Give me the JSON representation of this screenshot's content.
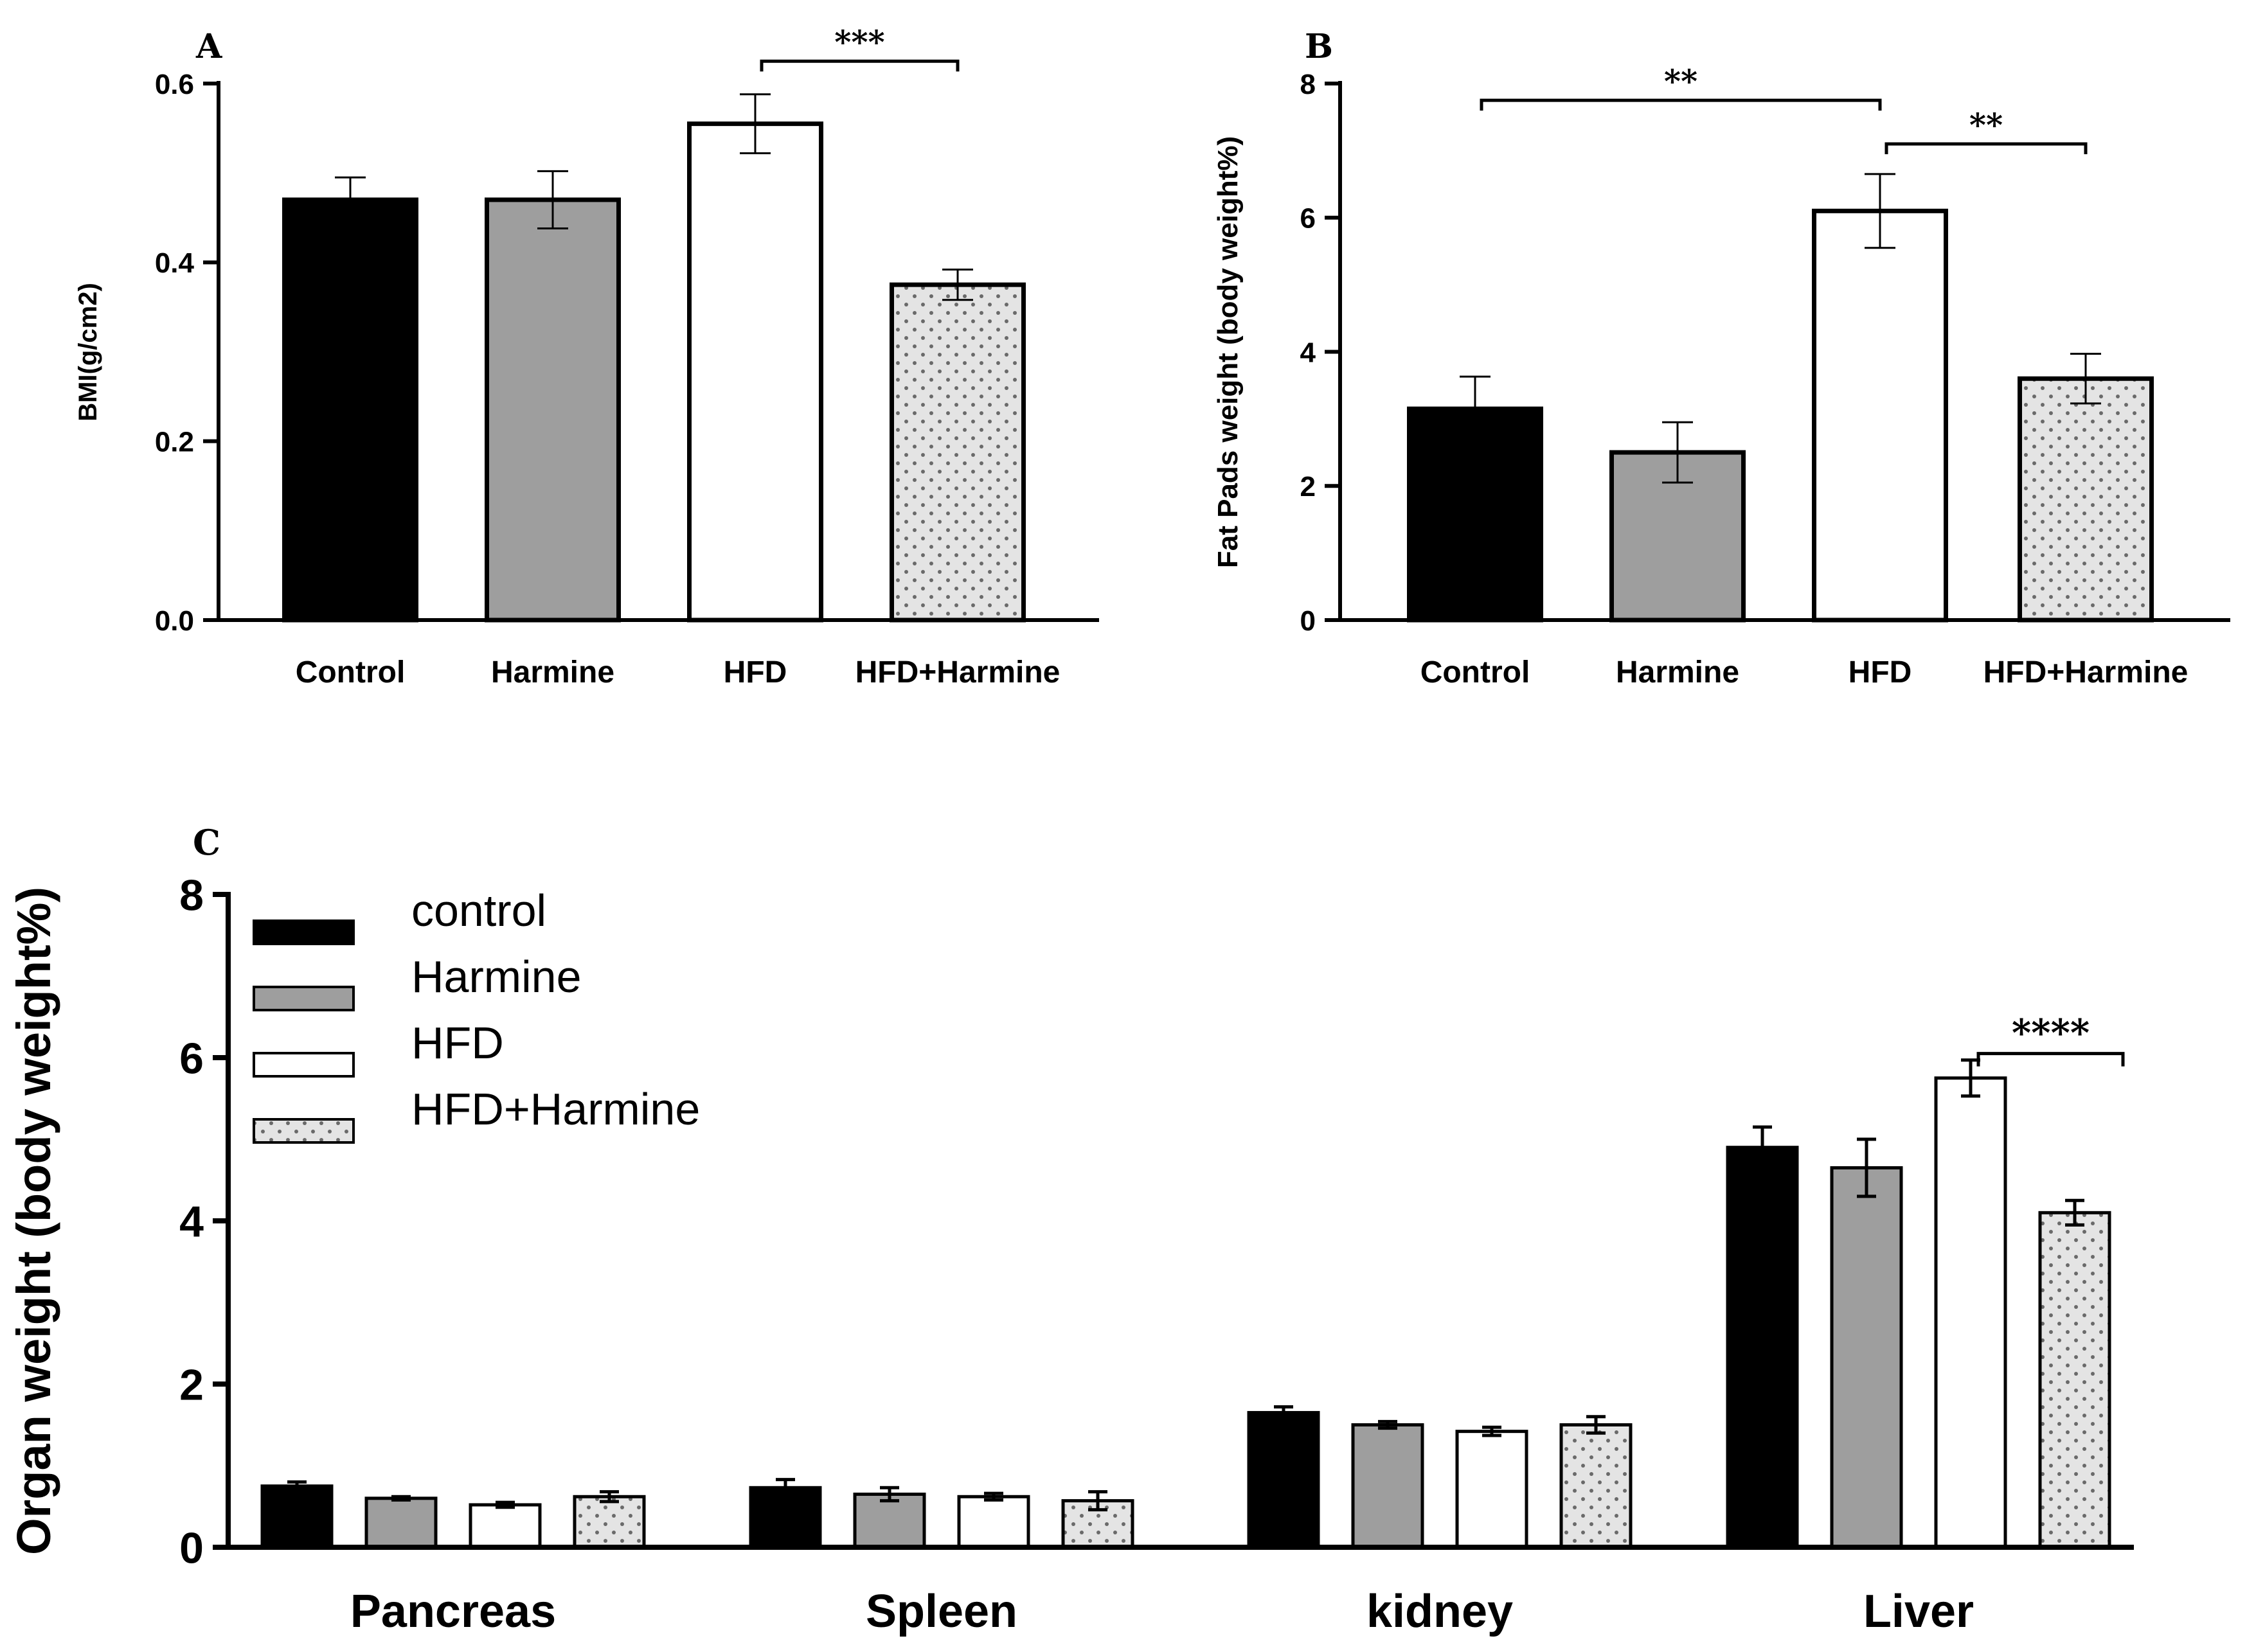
{
  "colors": {
    "control": "#000000",
    "harmine": "#9e9e9e",
    "hfd": "#ffffff",
    "hfd_harmine": "#e4e4e4",
    "dots": "#6a6a6a",
    "axis": "#000000"
  },
  "chart_data": [
    {
      "id": "A",
      "type": "bar",
      "panel_label": "A",
      "ylabel": "BMI(g/cm2)",
      "xlabel": "",
      "ylim": [
        0,
        0.6
      ],
      "yticks": [
        0.0,
        0.2,
        0.4,
        0.6
      ],
      "ytick_labels": [
        "0.0",
        "0.2",
        "0.4",
        "0.6"
      ],
      "categories": [
        "Control",
        "Harmine",
        "HFD",
        "HFD+Harmine"
      ],
      "values": [
        0.47,
        0.47,
        0.555,
        0.375
      ],
      "errors": [
        0.025,
        0.032,
        0.033,
        0.017
      ],
      "significance": [
        {
          "from": 2,
          "to": 3,
          "y": 0.625,
          "label": "***"
        }
      ]
    },
    {
      "id": "B",
      "type": "bar",
      "panel_label": "B",
      "ylabel": "Fat Pads weight (body weight%)",
      "xlabel": "",
      "ylim": [
        0,
        8
      ],
      "yticks": [
        0,
        2,
        4,
        6,
        8
      ],
      "ytick_labels": [
        "0",
        "2",
        "4",
        "6",
        "8"
      ],
      "categories": [
        "Control",
        "Harmine",
        "HFD",
        "HFD+Harmine"
      ],
      "values": [
        3.15,
        2.5,
        6.1,
        3.6
      ],
      "errors": [
        0.48,
        0.45,
        0.55,
        0.37
      ],
      "significance": [
        {
          "from": 0,
          "to": 2,
          "y": 7.75,
          "label": "**"
        },
        {
          "from": 2,
          "to": 3,
          "y": 7.1,
          "label": "**"
        }
      ]
    },
    {
      "id": "C",
      "type": "bar",
      "panel_label": "C",
      "ylabel": "Organ  weight (body weight%)",
      "xlabel": "",
      "ylim": [
        0,
        8
      ],
      "yticks": [
        0,
        2,
        4,
        6,
        8
      ],
      "ytick_labels": [
        "0",
        "2",
        "4",
        "6",
        "8"
      ],
      "categories": [
        "Pancreas",
        "Spleen",
        "kidney",
        "Liver"
      ],
      "series": [
        {
          "name": "control",
          "values": [
            0.75,
            0.73,
            1.65,
            4.9
          ],
          "errors": [
            0.05,
            0.1,
            0.07,
            0.25
          ]
        },
        {
          "name": "Harmine",
          "values": [
            0.6,
            0.65,
            1.5,
            4.65
          ],
          "errors": [
            0.02,
            0.08,
            0.04,
            0.35
          ]
        },
        {
          "name": "HFD",
          "values": [
            0.52,
            0.62,
            1.42,
            5.75
          ],
          "errors": [
            0.03,
            0.04,
            0.05,
            0.22
          ]
        },
        {
          "name": "HFD+Harmine",
          "values": [
            0.62,
            0.57,
            1.5,
            4.1
          ],
          "errors": [
            0.06,
            0.11,
            0.1,
            0.15
          ]
        }
      ],
      "legend_position": "top-left",
      "significance": [
        {
          "category": 3,
          "from_series": 2,
          "to_series": 3,
          "y": 6.05,
          "label": "****"
        }
      ]
    }
  ]
}
